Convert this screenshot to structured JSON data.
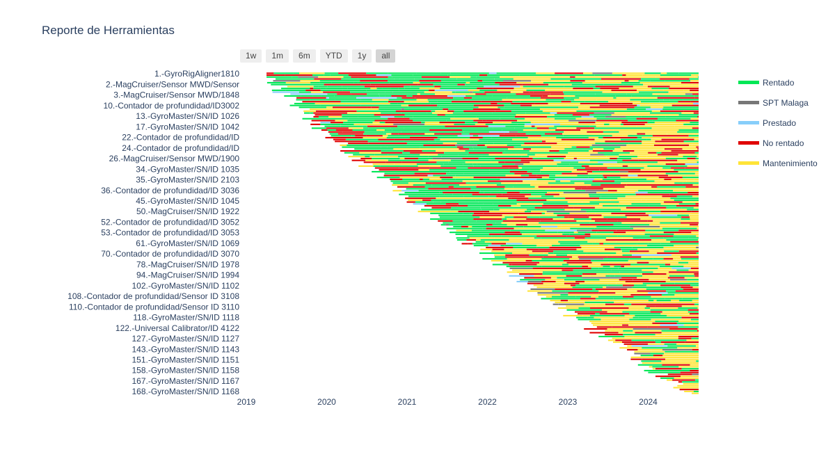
{
  "title": "Reporte de Herramientas",
  "range_buttons": [
    "1w",
    "1m",
    "6m",
    "YTD",
    "1y",
    "all"
  ],
  "active_range": "all",
  "legend": [
    {
      "name": "Rentado",
      "color": "#00e756"
    },
    {
      "name": "SPT Malaga",
      "color": "#777777"
    },
    {
      "name": "Prestado",
      "color": "#87cefa"
    },
    {
      "name": "No rentado",
      "color": "#e00000"
    },
    {
      "name": "Mantenimiento",
      "color": "#ffe437"
    }
  ],
  "chart_data": {
    "type": "timeline",
    "title": "Reporte de Herramientas",
    "x_ticks": [
      "2019",
      "2020",
      "2021",
      "2022",
      "2023",
      "2024"
    ],
    "x_range": [
      "2019-01-01",
      "2024-08-20"
    ],
    "grid": false,
    "legend_position": "right",
    "y_labels": [
      "1.-GyroRigAligner1810",
      "2.-MagCruiser/Sensor MWD/Sensor",
      "3.-MagCruiser/Sensor MWD/1848",
      "10.-Contador de profundidad/ID3002",
      "13.-GyroMaster/SN/ID 1026",
      "17.-GyroMaster/SN/ID 1042",
      "22.-Contador de profundidad/ID",
      "24.-Contador de profundidad/ID",
      "26.-MagCruiser/Sensor MWD/1900",
      "34.-GyroMaster/SN/ID 1035",
      "35.-GyroMaster/SN/ID 2103",
      "36.-Contador de profundidad/ID 3036",
      "45.-GyroMaster/SN/ID 1045",
      "50.-MagCruiser/SN/ID 1922",
      "52.-Contador de profundidad/ID 3052",
      "53.-Contador de profundidad/ID 3053",
      "61.-GyroMaster/SN/ID 1069",
      "70.-Contador de profundidad/ID 3070",
      "78.-MagCruiser/SN/ID 1978",
      "94.-MagCruiser/SN/ID 1994",
      "102.-GyroMaster/SN/ID 1102",
      "108.-Contador de profundidad/Sensor ID 3108",
      "110.-Contador de profundidad/Sensor ID 3110",
      "118.-GyroMaster/SN/ID 1118",
      "122.-Universal Calibrator/ID 4122",
      "127.-GyroMaster/SN/ID 1127",
      "143.-GyroMaster/SN/ID 1143",
      "151.-GyroMaster/SN/ID 1151",
      "158.-GyroMaster/SN/ID 1158",
      "167.-GyroMaster/SN/ID 1167",
      "168.-GyroMaster/SN/ID 1168"
    ]
  }
}
